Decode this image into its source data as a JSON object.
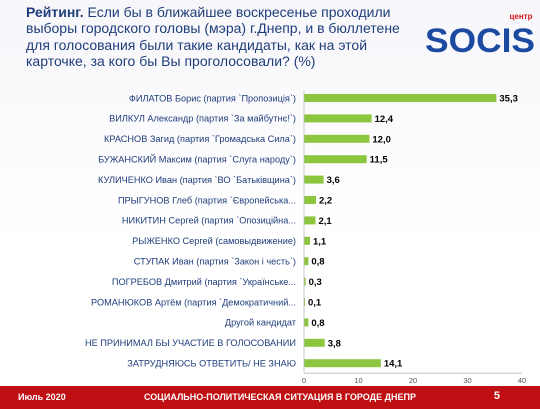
{
  "question": {
    "lead": "Рейтинг.",
    "text": "Если бы в ближайшее воскресенье проходили выборы городского головы (мэра) г.Днепр, и в бюллетене для голосования были такие кандидаты, как на этой карточке, за кого бы Вы проголосовали?  (%)"
  },
  "logo": {
    "small_text": "центр",
    "brand": "SOCIS",
    "colors": {
      "blue": "#1b4aa0",
      "red": "#d11a1f"
    }
  },
  "footer": {
    "date": "Июль 2020",
    "title": "СОЦИАЛЬНО-ПОЛИТИЧЕСКАЯ СИТУАЦИЯ В ГОРОДЕ ДНЕПР",
    "page": "5",
    "color": "#c00f13"
  },
  "chart_data": {
    "type": "bar",
    "orientation": "horizontal",
    "categories": [
      "ФИЛАТОВ Борис (партия `Пропозиція`)",
      "ВИЛКУЛ Александр (партия `За майбутнє!`)",
      "КРАСНОВ Загид (партия `Громадська Сила`)",
      "БУЖАНСКИЙ Максим (партия `Слуга народу`)",
      "КУЛИЧЕНКО Иван (партия `ВО `Батьківщина`)",
      "ПРЫГУНОВ Глеб (партия `Європейська...",
      "НИКИТИН Сергей (партия `Опозиційна...",
      "РЫЖЕНКО Сергей (самовыдвижение)",
      "СТУПАК Иван (партия `Закон і честь`)",
      "ПОГРЕБОВ Дмитрий (партия `Українське...",
      "РОМАНЮКОВ Артём (партия `Демократичний...",
      "Другой кандидат",
      "НЕ ПРИНИМАЛ БЫ УЧАСТИЕ В ГОЛОСОВАНИИ",
      "ЗАТРУДНЯЮСЬ ОТВЕТИТЬ/ НЕ ЗНАЮ"
    ],
    "values": [
      35.3,
      12.4,
      12.0,
      11.5,
      3.6,
      2.2,
      2.1,
      1.1,
      0.8,
      0.3,
      0.1,
      0.8,
      3.8,
      14.1
    ],
    "value_labels": [
      "35,3",
      "12,4",
      "12,0",
      "11,5",
      "3,6",
      "2,2",
      "2,1",
      "1,1",
      "0,8",
      "0,3",
      "0,1",
      "0,8",
      "3,8",
      "14,1"
    ],
    "xlim": [
      0,
      40
    ],
    "ticks": [
      "0",
      "10",
      "20",
      "30",
      "40"
    ],
    "bar_color": "#8cc63f",
    "grid": false,
    "legend": "none"
  }
}
